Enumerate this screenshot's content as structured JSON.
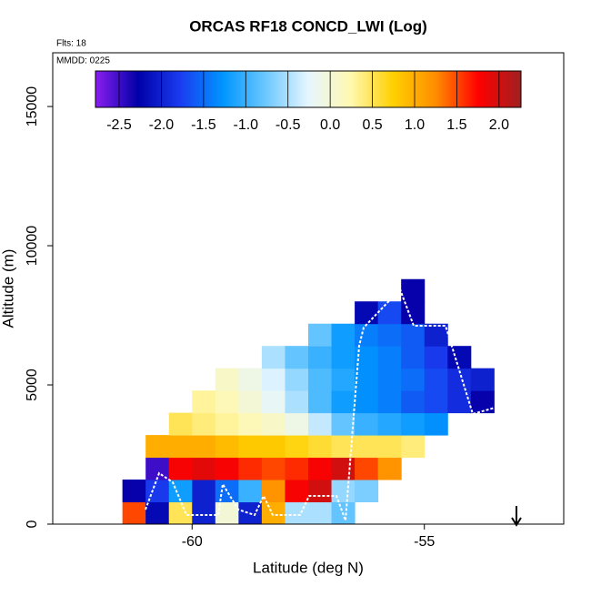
{
  "chart_data": {
    "type": "heatmap",
    "title": "ORCAS RF18 CONCD_LWI (Log)",
    "annotations": [
      "Flts: 18",
      "MMDD: 0225"
    ],
    "xlabel": "Latitude (deg N)",
    "ylabel": "Altitude (m)",
    "xlim": [
      -63,
      -52
    ],
    "ylim": [
      0,
      16930
    ],
    "xticks": [
      -60,
      -55
    ],
    "yticks": [
      0,
      5000,
      10000,
      15000
    ],
    "x": [
      -61.25,
      -60.75,
      -60.25,
      -59.75,
      -59.25,
      -58.75,
      -58.25,
      -57.75,
      -57.25,
      -56.75,
      -56.25,
      -55.75,
      -55.25,
      -54.75,
      -54.25,
      -53.75
    ],
    "y": [
      400,
      1200,
      2000,
      2800,
      3600,
      4400,
      5200,
      6000,
      6800,
      7600,
      8400
    ],
    "values": [
      [
        1.5,
        -2.2,
        0.5,
        -2.0,
        0.0,
        -2.0,
        1.0,
        -0.5,
        -0.5,
        -0.8,
        null,
        null,
        null,
        null,
        null,
        null
      ],
      [
        -2.3,
        -1.8,
        -1.2,
        -2.0,
        -1.5,
        -1.0,
        1.2,
        1.8,
        2.0,
        -0.6,
        -0.7,
        null,
        null,
        null,
        null,
        null
      ],
      [
        null,
        -2.5,
        1.8,
        1.9,
        1.8,
        1.6,
        1.5,
        1.6,
        1.8,
        2.0,
        1.5,
        1.2,
        null,
        null,
        null,
        null
      ],
      [
        null,
        1.0,
        1.0,
        1.0,
        0.9,
        0.8,
        0.8,
        0.7,
        0.6,
        0.5,
        0.5,
        0.5,
        0.4,
        null,
        null,
        null
      ],
      [
        null,
        null,
        0.5,
        0.4,
        0.3,
        0.2,
        0.1,
        -0.1,
        -0.4,
        -0.8,
        -1.0,
        -1.1,
        -1.2,
        -1.3,
        null,
        null
      ],
      [
        null,
        null,
        null,
        0.3,
        0.2,
        0.0,
        -0.2,
        -0.5,
        -0.9,
        -1.2,
        -1.3,
        -1.4,
        -1.6,
        -1.7,
        -1.9,
        -2.3
      ],
      [
        null,
        null,
        null,
        null,
        0.1,
        -0.1,
        -0.3,
        -0.6,
        -0.9,
        -1.1,
        -1.3,
        -1.4,
        -1.5,
        -1.7,
        -1.9,
        -2.0
      ],
      [
        null,
        null,
        null,
        null,
        null,
        null,
        -0.5,
        -0.8,
        -1.0,
        -1.2,
        -1.3,
        -1.4,
        -1.6,
        -1.8,
        -2.2,
        null
      ],
      [
        null,
        null,
        null,
        null,
        null,
        null,
        null,
        null,
        -0.8,
        -1.2,
        -1.4,
        -1.5,
        -1.6,
        -2.0,
        null,
        null
      ],
      [
        null,
        null,
        null,
        null,
        null,
        null,
        null,
        null,
        null,
        null,
        -2.2,
        -1.7,
        -2.3,
        null,
        null,
        null
      ],
      [
        null,
        null,
        null,
        null,
        null,
        null,
        null,
        null,
        null,
        null,
        null,
        null,
        -2.3,
        null,
        null,
        null
      ]
    ],
    "colorbar": {
      "lim": [
        -2.78,
        2.26
      ],
      "ticks": [
        -2.5,
        {
          "value": -2,
          "label": "-2.0"
        },
        -1.5,
        {
          "value": -1,
          "label": "-1.0"
        },
        -0.5,
        {
          "value": 0,
          "label": "0.0"
        },
        0.5,
        {
          "value": 1,
          "label": "1.0"
        },
        1.5,
        {
          "value": 2,
          "label": "2.0"
        }
      ],
      "colors": [
        "#8a1ef0",
        "#0000a8",
        "#1a3cf0",
        "#0096ff",
        "#6cc8ff",
        "#e6f6ff",
        "#fff8b0",
        "#ffd000",
        "#ff8c00",
        "#ff0000",
        "#a02020"
      ]
    }
  }
}
